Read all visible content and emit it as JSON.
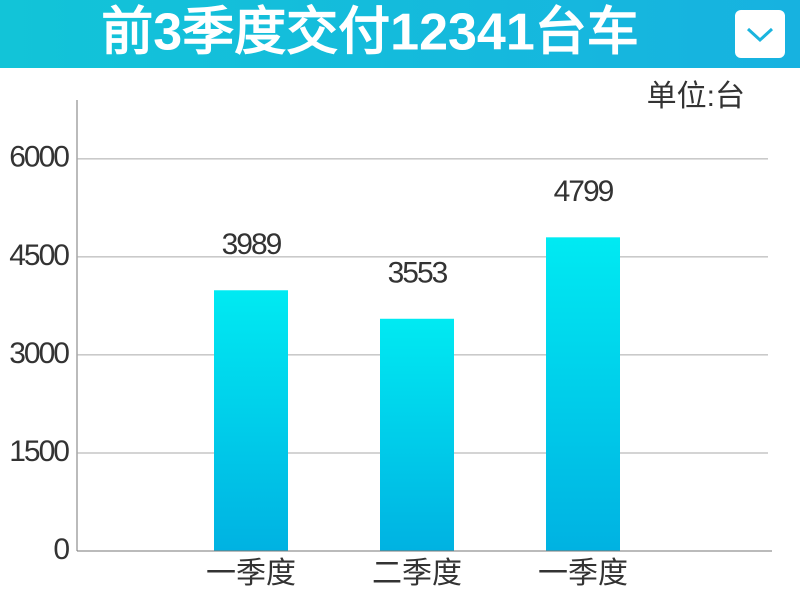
{
  "chart_data": {
    "type": "bar",
    "title": "前3季度交付12341台车",
    "unit_label": "单位:台",
    "categories": [
      "一季度",
      "二季度",
      "一季度"
    ],
    "values": [
      3989,
      3553,
      4799
    ],
    "color": "#00c8ea",
    "ylim": [
      0,
      6900
    ],
    "yticks": [
      0,
      1500,
      3000,
      4500,
      6000
    ],
    "grid": true
  }
}
